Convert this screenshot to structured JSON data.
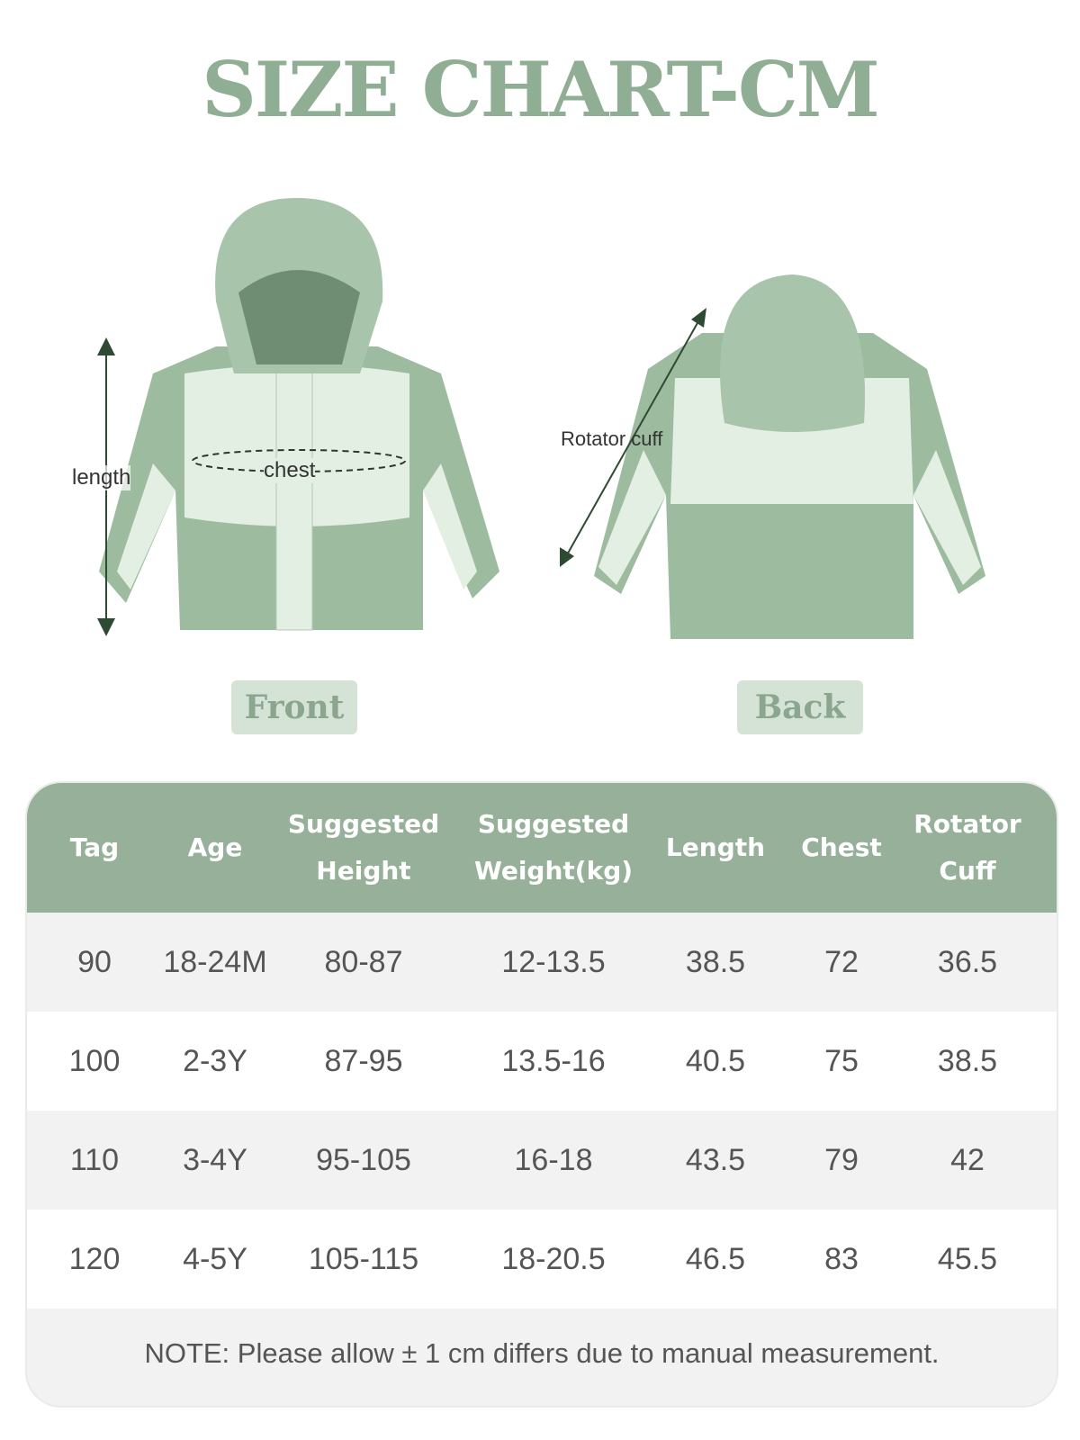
{
  "title": "SIZE CHART-CM",
  "front": {
    "label": "Front",
    "annotations": {
      "length": "length",
      "chest": "chest"
    }
  },
  "back": {
    "label": "Back",
    "annotations": {
      "cuff": "Rotator cuff"
    }
  },
  "colors": {
    "accent": "#8fae94",
    "header": "#97b09a",
    "jacket_green": "#9dbb9f",
    "jacket_light": "#e3efe3"
  },
  "table": {
    "headers": [
      [
        "Tag"
      ],
      [
        "Age"
      ],
      [
        "Suggested",
        "Height"
      ],
      [
        "Suggested",
        "Weight(kg)"
      ],
      [
        "Length"
      ],
      [
        "Chest"
      ],
      [
        "Rotator",
        "Cuff"
      ]
    ],
    "rows": [
      [
        "90",
        "18-24M",
        "80-87",
        "12-13.5",
        "38.5",
        "72",
        "36.5"
      ],
      [
        "100",
        "2-3Y",
        "87-95",
        "13.5-16",
        "40.5",
        "75",
        "38.5"
      ],
      [
        "110",
        "3-4Y",
        "95-105",
        "16-18",
        "43.5",
        "79",
        "42"
      ],
      [
        "120",
        "4-5Y",
        "105-115",
        "18-20.5",
        "46.5",
        "83",
        "45.5"
      ]
    ],
    "note": "NOTE: Please allow ± 1 cm differs due to manual measurement."
  }
}
